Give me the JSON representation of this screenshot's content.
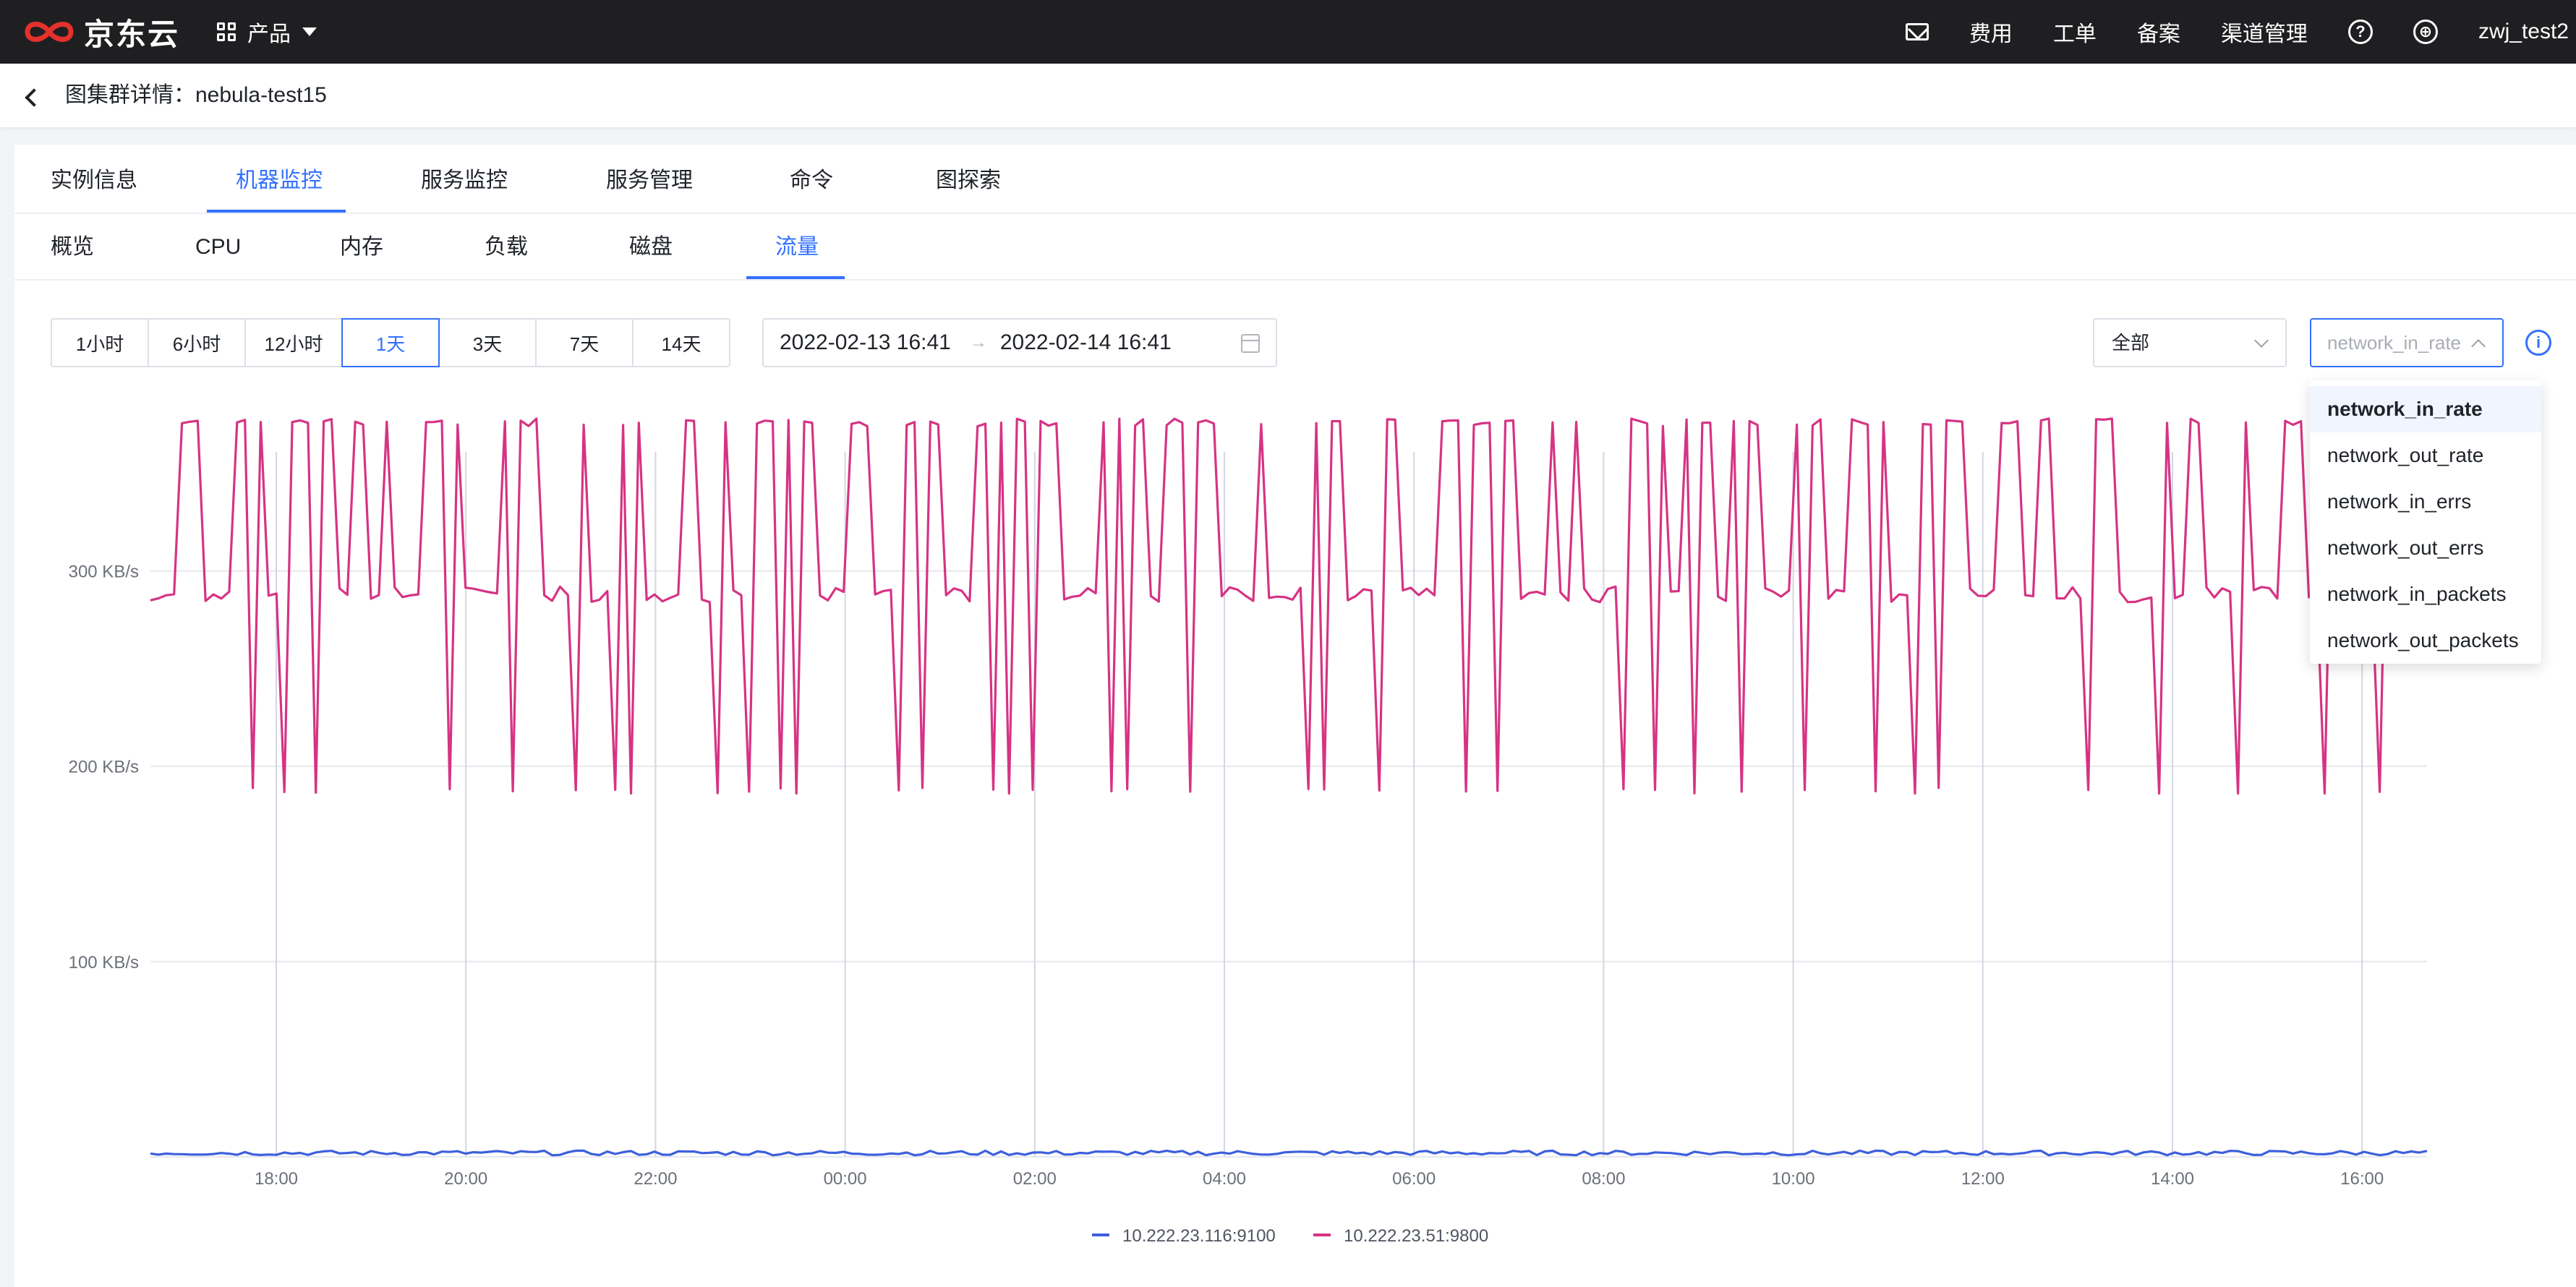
{
  "brand": {
    "logo_text": "京东云",
    "accent_color": "#e4312b"
  },
  "topbar": {
    "product_menu_label": "产品",
    "items": [
      "费用",
      "工单",
      "备案",
      "渠道管理"
    ],
    "help_icon": "help-circle-icon",
    "globe_icon": "globe-icon",
    "mail_icon": "mail-icon",
    "username": "zwj_test2"
  },
  "breadcrumb": {
    "title": "图集群详情：nebula-test15"
  },
  "tabs_primary": [
    "实例信息",
    "机器监控",
    "服务监控",
    "服务管理",
    "命令",
    "图探索"
  ],
  "tabs_primary_active": "机器监控",
  "tabs_secondary": [
    "概览",
    "CPU",
    "内存",
    "负载",
    "磁盘",
    "流量"
  ],
  "tabs_secondary_active": "流量",
  "time_ranges": [
    "1小时",
    "6小时",
    "12小时",
    "1天",
    "3天",
    "7天",
    "14天"
  ],
  "time_range_active": "1天",
  "date_range": {
    "start": "2022-02-13 16:41",
    "arrow": "→",
    "end": "2022-02-14 16:41"
  },
  "instance_select": {
    "value": "全部"
  },
  "metric_select": {
    "value": "network_in_rate",
    "options": [
      "network_in_rate",
      "network_out_rate",
      "network_in_errs",
      "network_out_errs",
      "network_in_packets",
      "network_out_packets"
    ],
    "selected": "network_in_rate"
  },
  "colors": {
    "accent": "#3370ff",
    "series_blue": "#3d5fdc",
    "series_pink": "#d63384"
  },
  "chart_data": {
    "type": "line",
    "x_ticks": [
      "18:00",
      "20:00",
      "22:00",
      "00:00",
      "02:00",
      "04:00",
      "06:00",
      "08:00",
      "10:00",
      "12:00",
      "14:00",
      "16:00"
    ],
    "y_ticks": [
      "100 KB/s",
      "200 KB/s",
      "300 KB/s"
    ],
    "y_unit": "KB/s",
    "ylim": [
      0,
      385
    ],
    "x_range": [
      "2022-02-13 16:41",
      "2022-02-14 16:41"
    ],
    "legend_position": "bottom-center",
    "series": [
      {
        "name": "10.222.23.116:9100",
        "color": "#3d5fdc",
        "approx_level": 2
      },
      {
        "name": "10.222.23.51:9800",
        "color": "#d63384",
        "range": [
          186,
          378
        ],
        "pattern": "oscillating between ~285-292 KB/s plateaus, ~378 KB/s peaks, ~186 KB/s dips"
      }
    ]
  }
}
